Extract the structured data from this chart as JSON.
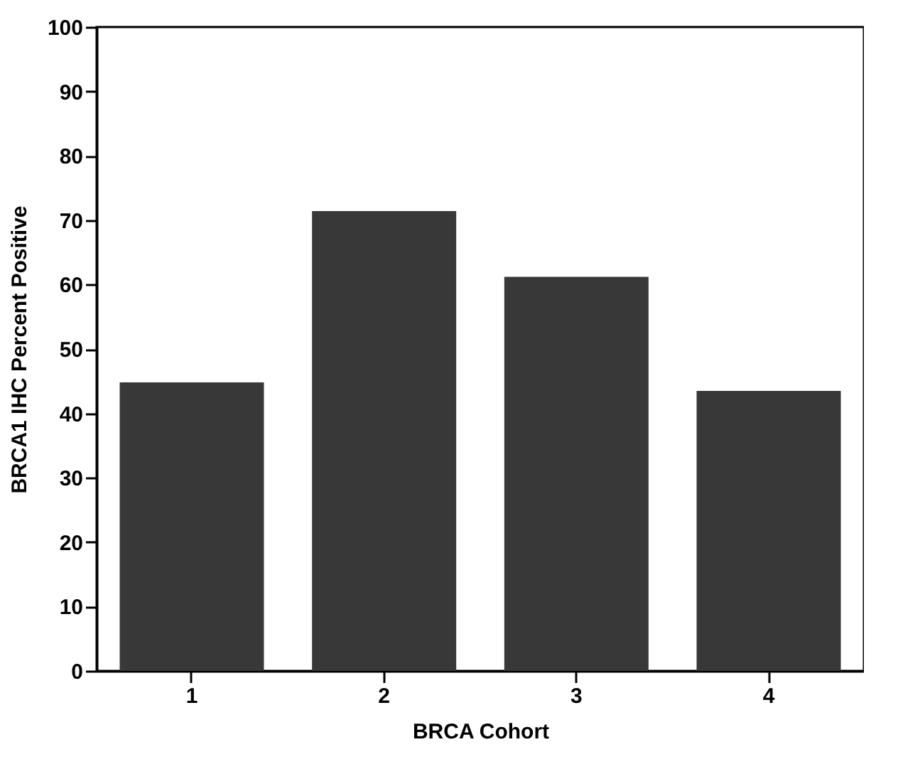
{
  "chart_data": {
    "type": "bar",
    "xlabel": "BRCA Cohort",
    "ylabel": "BRCA1 IHC Percent Positive",
    "categories": [
      "1",
      "2",
      "3",
      "4"
    ],
    "values": [
      44.8,
      71.4,
      61.2,
      43.5
    ],
    "color": "#383838",
    "ylim": [
      0,
      100
    ],
    "yticks": [
      0,
      10,
      20,
      30,
      40,
      50,
      60,
      70,
      80,
      90,
      100
    ],
    "grid": false
  }
}
